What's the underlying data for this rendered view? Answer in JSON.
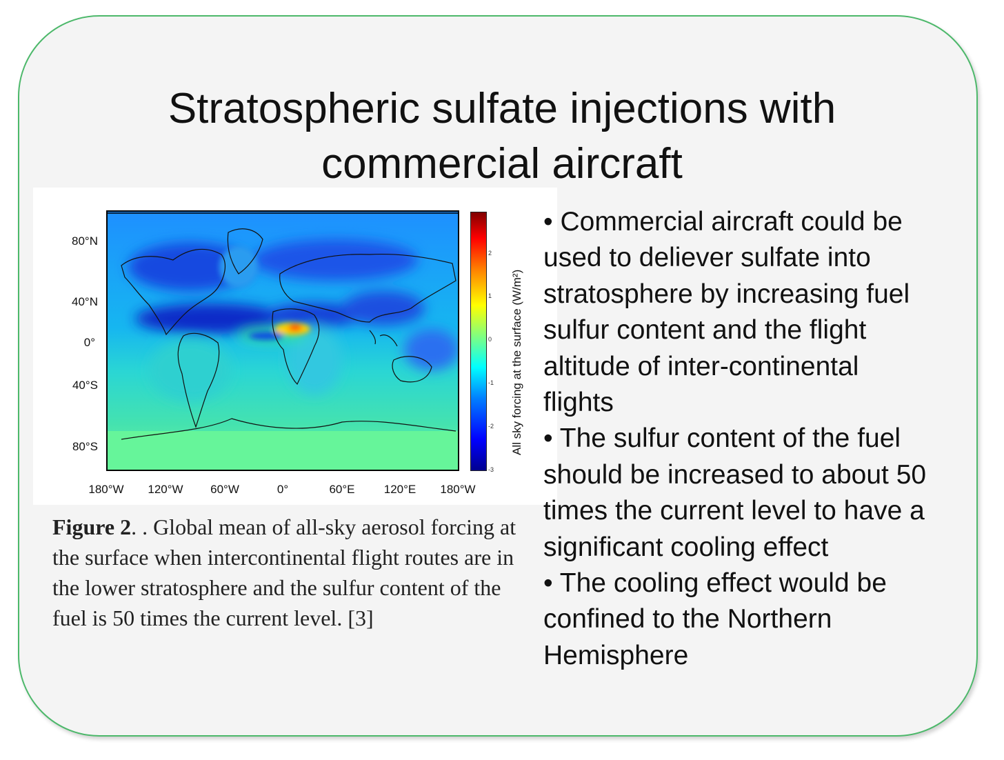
{
  "slide": {
    "title_line1": "Stratospheric sulfate injections with",
    "title_line2": "commercial aircraft",
    "border_color": "#4cb86a",
    "background": "#f4f4f4"
  },
  "figure": {
    "y_ticks": [
      "80°N",
      "40°N",
      "0°",
      "40°S",
      "80°S"
    ],
    "x_ticks": [
      "180°W",
      "120°W",
      "60°W",
      "0°",
      "60°E",
      "120°E",
      "180°W"
    ],
    "colorbar_label": "All sky forcing at the surface (W/m²)",
    "colorbar_ticks": [
      "2",
      "1",
      "0",
      "-1",
      "-2",
      "-3"
    ],
    "caption_bold": "Figure 2",
    "caption_text": ". . Global mean of all-sky aerosol forcing  at the surface when intercontinental flight routes are in the lower stratosphere and the sulfur content of the fuel is 50 times the current level. [3]"
  },
  "bullets": [
    "• Commercial aircraft could be used to deliever sulfate into stratosphere by increasing fuel sulfur content and the flight altitude of inter-continental flights",
    "• The sulfur content of the fuel should be increased to about 50 times the current level to have a significant cooling effect",
    "• The cooling effect would be confined to the Northern Hemisphere"
  ]
}
